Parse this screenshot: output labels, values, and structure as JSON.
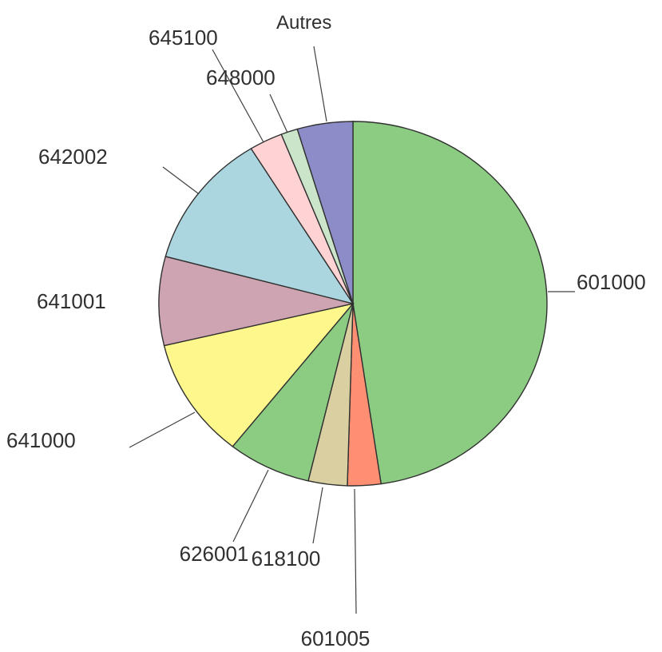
{
  "chart_data": {
    "type": "pie",
    "title": "",
    "start_angle_deg": 0,
    "direction": "clockwise",
    "slices": [
      {
        "label": "601000",
        "value": 51.5,
        "color": "#8ccb82"
      },
      {
        "label": "601005",
        "value": 3.0,
        "color": "#ff8f73"
      },
      {
        "label": "618100",
        "value": 3.5,
        "color": "#d9cfa0"
      },
      {
        "label": "626001",
        "value": 7.5,
        "color": "#8ccb82"
      },
      {
        "label": "641000",
        "value": 11.5,
        "color": "#fef88c"
      },
      {
        "label": "641001",
        "value": 8.5,
        "color": "#cea4b2"
      },
      {
        "label": "642002",
        "value": 13.0,
        "color": "#abd6df"
      },
      {
        "label": "645100",
        "value": 3.0,
        "color": "#ffd2d4"
      },
      {
        "label": "648000",
        "value": 1.5,
        "color": "#cbe5ca"
      },
      {
        "label": "Autres",
        "value": 5.0,
        "color": "#8c8cc8"
      }
    ]
  }
}
